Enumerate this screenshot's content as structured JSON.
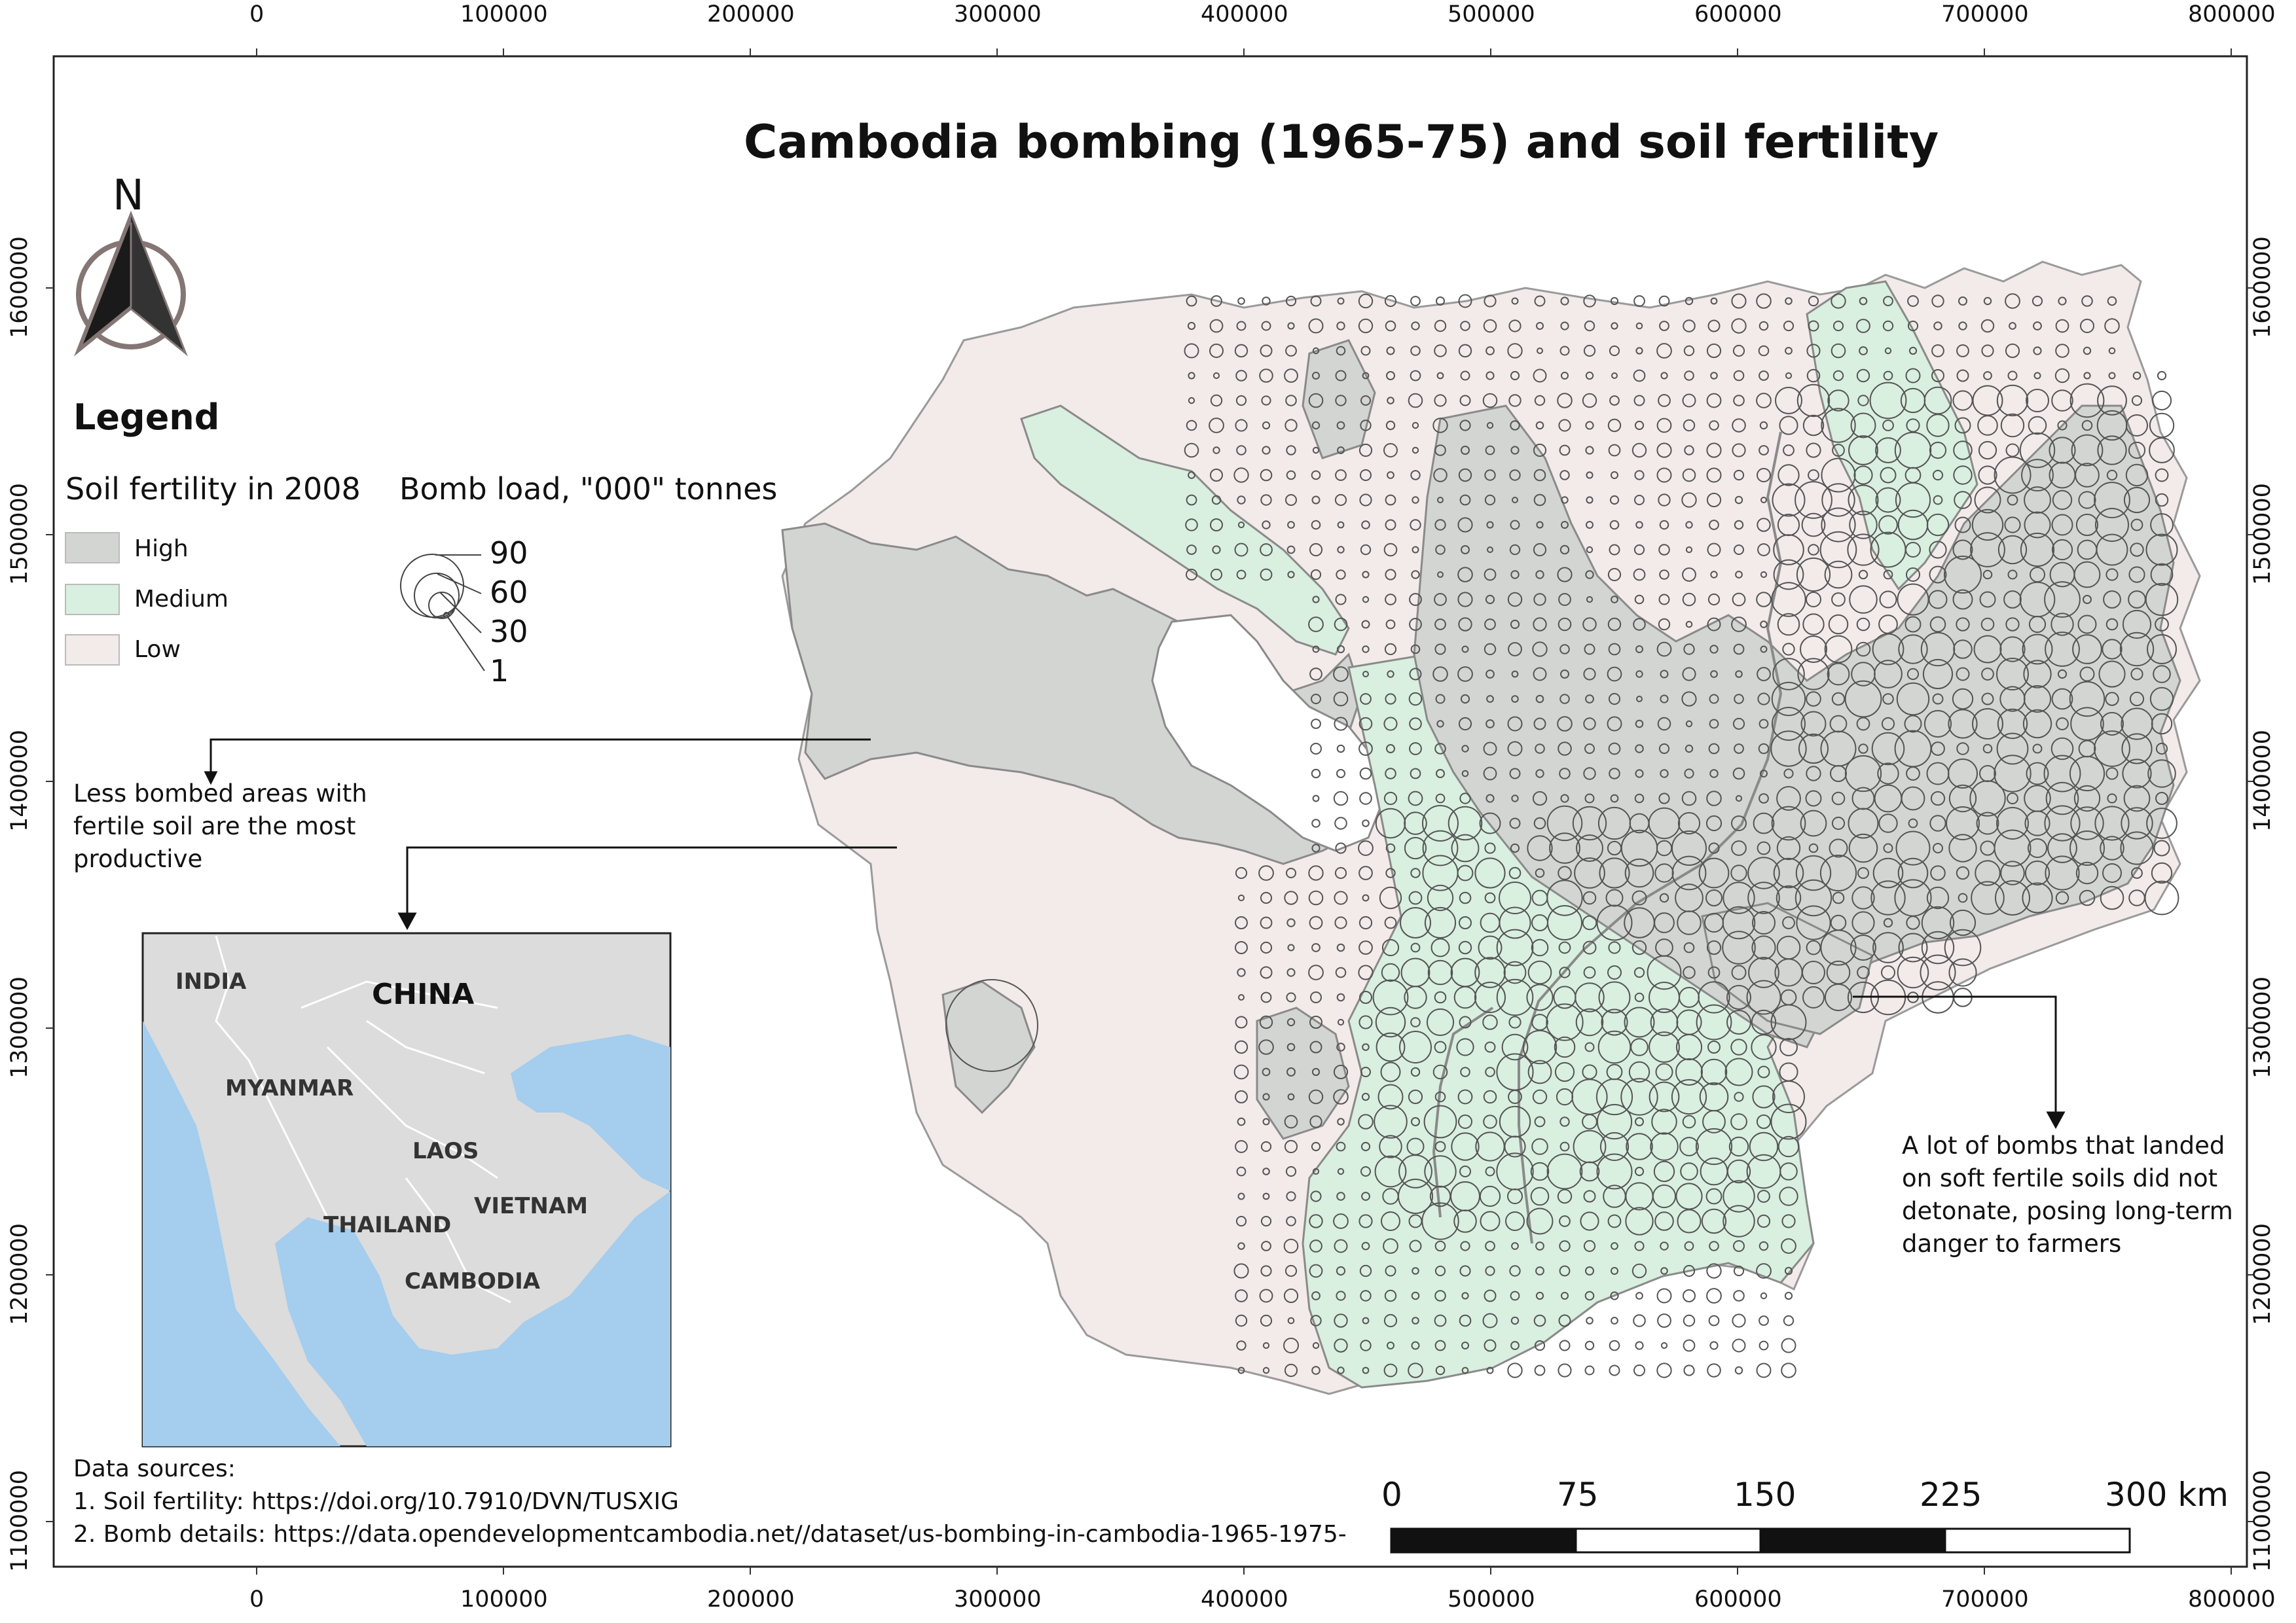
{
  "title": "Cambodia bombing (1965-75) and soil fertility",
  "north_arrow": {
    "label": "N"
  },
  "legend": {
    "title": "Legend",
    "soil_heading": "Soil fertility in 2008",
    "soil_classes": [
      {
        "label": "High",
        "color": "#d3d5d2"
      },
      {
        "label": "Medium",
        "color": "#d9efe0"
      },
      {
        "label": "Low",
        "color": "#f3eaea"
      }
    ],
    "bomb_heading": "Bomb load, \"000\" tonnes",
    "bomb_sizes": [
      "90",
      "60",
      "30",
      "1"
    ]
  },
  "annotations": {
    "left": "Less bombed areas with fertile soil are the most productive",
    "right": "A lot of bombs that landed on soft fertile soils did not detonate, posing long-term danger to farmers"
  },
  "inset_map": {
    "labels": [
      "INDIA",
      "CHINA",
      "MYANMAR",
      "LAOS",
      "VIETNAM",
      "THAILAND",
      "CAMBODIA"
    ],
    "land_color": "#dcdcdc",
    "sea_color": "#a4cdee"
  },
  "data_sources": {
    "heading": "Data sources:",
    "lines": [
      "1. Soil fertility: https://doi.org/10.7910/DVN/TUSXIG",
      "2. Bomb details: https://data.opendevelopmentcambodia.net//dataset/us-bombing-in-cambodia-1965-1975-"
    ]
  },
  "scale_bar": {
    "labels": [
      "0",
      "75",
      "150",
      "225",
      "300 km"
    ]
  },
  "axes": {
    "x_ticks": [
      "0",
      "100000",
      "200000",
      "300000",
      "400000",
      "500000",
      "600000",
      "700000",
      "800000"
    ],
    "y_ticks": [
      "1600000",
      "1500000",
      "1400000",
      "1300000",
      "1200000",
      "1100000"
    ]
  },
  "colors": {
    "high": "#d3d5d2",
    "medium": "#d9efe0",
    "low": "#f3eaea",
    "outline": "#8a8a8a"
  }
}
